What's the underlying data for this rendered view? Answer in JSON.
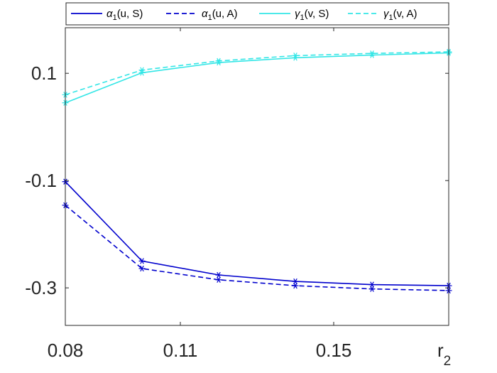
{
  "chart_data": {
    "type": "line",
    "title": "",
    "xlabel": "r",
    "xlabel_sub": "2",
    "ylabel": "",
    "x": [
      0.08,
      0.1,
      0.12,
      0.14,
      0.16,
      0.18
    ],
    "xlim": [
      0.08,
      0.18
    ],
    "ylim": [
      -0.37,
      0.185
    ],
    "xticks": [
      0.08,
      0.11,
      0.15
    ],
    "xtick_labels": [
      "0.08",
      "0.11",
      "0.15"
    ],
    "yticks": [
      0.1,
      -0.1,
      -0.3
    ],
    "ytick_labels": [
      "0.1",
      "-0.1",
      "-0.3"
    ],
    "grid": false,
    "legend_position": "top",
    "series": [
      {
        "legend": {
          "greek": "α",
          "sub": "1",
          "args": "(u, S)"
        },
        "color": "#0000CD",
        "dash": "solid",
        "values": [
          -0.102,
          -0.25,
          -0.276,
          -0.288,
          -0.294,
          -0.296
        ]
      },
      {
        "legend": {
          "greek": "α",
          "sub": "1",
          "args": "(u, A)"
        },
        "color": "#0000CD",
        "dash": "dashed",
        "values": [
          -0.146,
          -0.264,
          -0.285,
          -0.296,
          -0.302,
          -0.305
        ]
      },
      {
        "legend": {
          "greek": "γ",
          "sub": "1",
          "args": "(v, S)"
        },
        "color": "#33E6E6",
        "dash": "solid",
        "values": [
          0.045,
          0.101,
          0.12,
          0.129,
          0.134,
          0.138
        ]
      },
      {
        "legend": {
          "greek": "γ",
          "sub": "1",
          "args": "(v, A)"
        },
        "color": "#33E6E6",
        "dash": "dashed",
        "values": [
          0.06,
          0.106,
          0.123,
          0.133,
          0.137,
          0.14
        ]
      }
    ]
  }
}
